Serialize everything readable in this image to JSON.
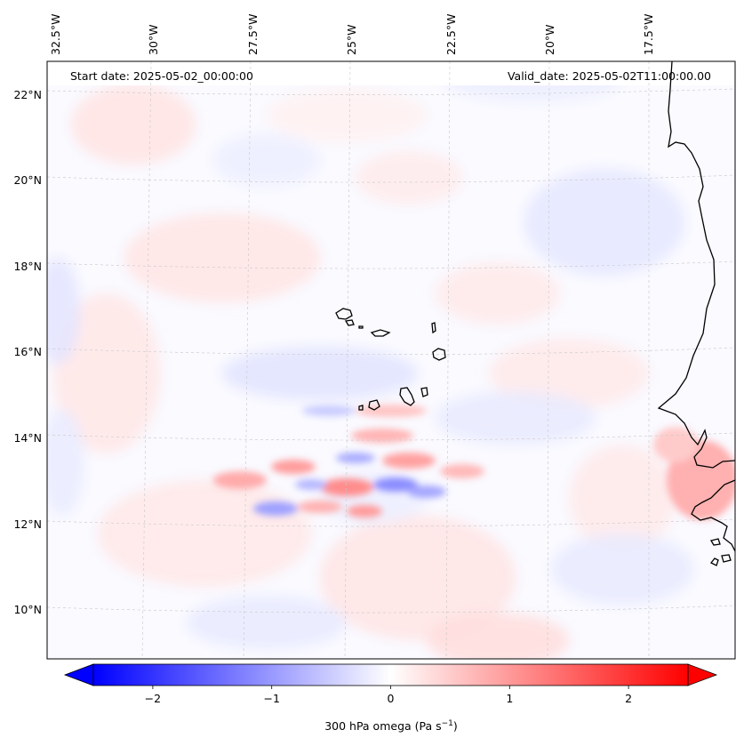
{
  "map": {
    "field": "300 hPa omega",
    "units": "Pa s⁻¹",
    "colormap": "bwr",
    "start_date_label": "Start date: 2025-05-02_00:00:00",
    "valid_date_label": "Valid_date: 2025-05-02T11:00:00.00",
    "lon_ticks": [
      "32.5°W",
      "30°W",
      "27.5°W",
      "25°W",
      "22.5°W",
      "20°W",
      "17.5°W"
    ],
    "lat_ticks": [
      "22°N",
      "20°N",
      "18°N",
      "16°N",
      "14°N",
      "12°N",
      "10°N"
    ],
    "colorbar": {
      "label_prefix": "300 hPa omega (Pa s",
      "label_sup": "−1",
      "label_suffix": ")",
      "ticks": [
        "−2",
        "−1",
        "0",
        "1",
        "2"
      ],
      "tick_values": [
        -2,
        -1,
        0,
        1,
        2
      ],
      "range": [
        -2.5,
        2.5
      ],
      "color_min": "#0000ff",
      "color_mid": "#ffffff",
      "color_max": "#ff0000",
      "extend": "both"
    },
    "places": [
      "Cape Verde islands",
      "West African coast"
    ]
  }
}
